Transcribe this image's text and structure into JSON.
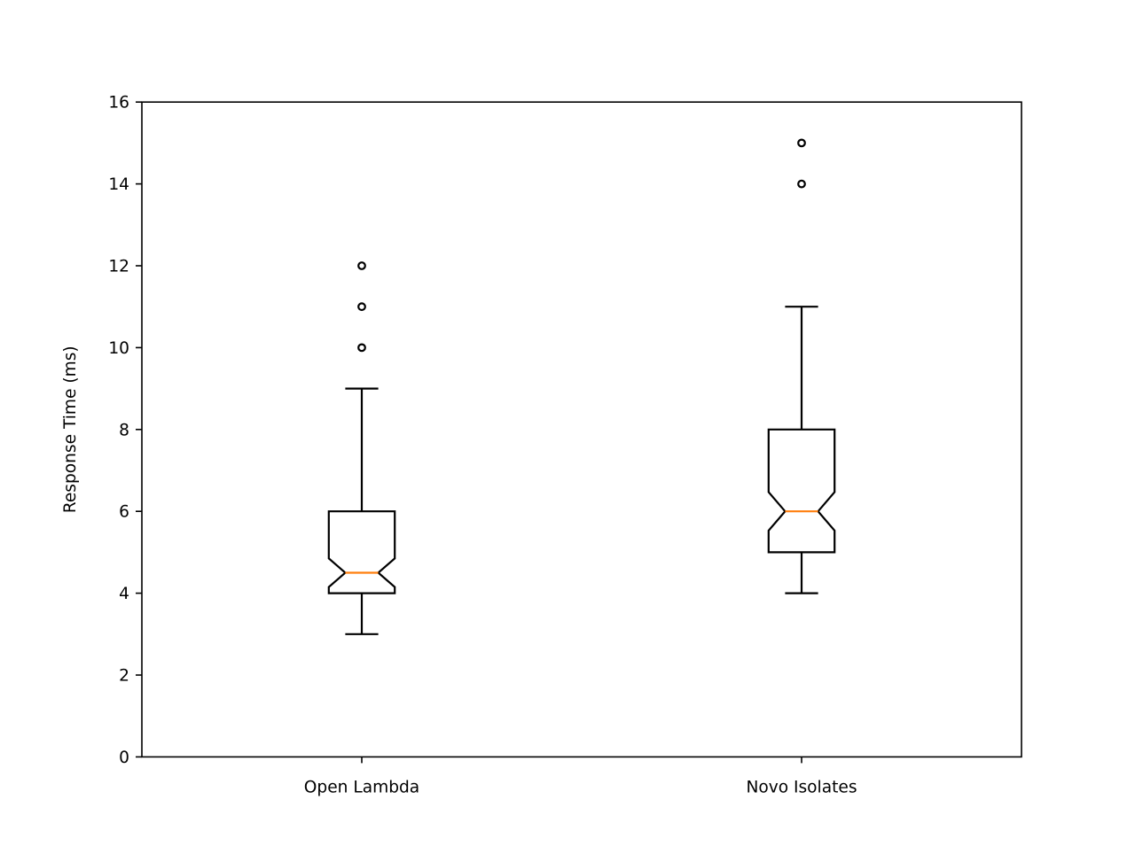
{
  "chart_data": {
    "type": "boxplot",
    "notched": true,
    "title": "",
    "xlabel": "",
    "ylabel": "Response Time (ms)",
    "ylim": [
      0,
      16
    ],
    "yticks": [
      0,
      2,
      4,
      6,
      8,
      10,
      12,
      14,
      16
    ],
    "grid": false,
    "categories": [
      "Open Lambda",
      "Novo Isolates"
    ],
    "boxes": [
      {
        "category": "Open Lambda",
        "whisker_low": 3,
        "q1": 4,
        "median": 4.5,
        "q3": 6,
        "whisker_high": 9,
        "notch_low": 4.15,
        "notch_high": 4.85,
        "outliers": [
          10,
          11,
          12
        ]
      },
      {
        "category": "Novo Isolates",
        "whisker_low": 4,
        "q1": 5,
        "median": 6,
        "q3": 8,
        "whisker_high": 11,
        "notch_low": 5.53,
        "notch_high": 6.47,
        "outliers": [
          14,
          15
        ]
      }
    ],
    "colors": {
      "box": "#000000",
      "median": "#ff7f0e",
      "outlier": "#000000"
    }
  }
}
